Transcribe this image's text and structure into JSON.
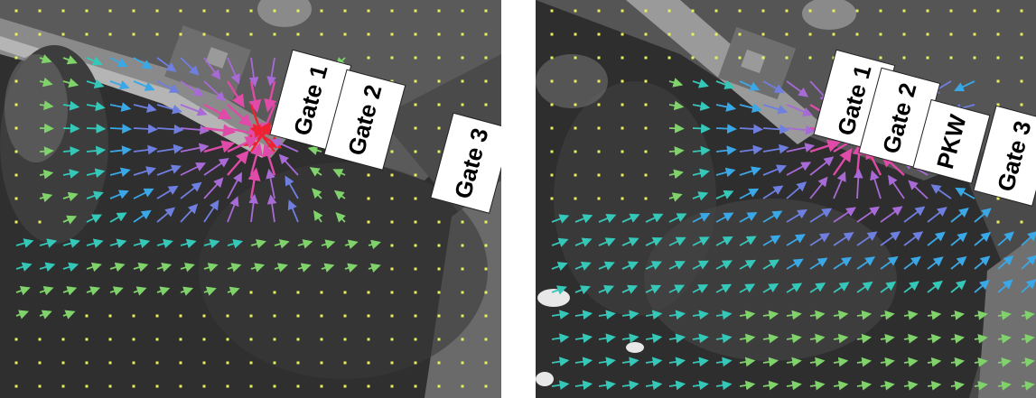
{
  "panels": [
    {
      "id": "left",
      "labels": [
        "Gate 1",
        "Gate 2",
        "Gate 3"
      ]
    },
    {
      "id": "right",
      "labels": [
        "Gate 1",
        "Gate 2",
        "PKW",
        "Gate 3"
      ]
    }
  ],
  "colors": {
    "vector_low": "#d8e64a",
    "vector_midlow": "#7fd36a",
    "vector_mid": "#35c7b8",
    "vector_midhigh": "#3aa8e6",
    "vector_high1": "#6f7fe0",
    "vector_high2": "#a86ad6",
    "vector_high3": "#e04aa8",
    "vector_max": "#ee2233",
    "marker_yellow": "#e8f05a"
  }
}
